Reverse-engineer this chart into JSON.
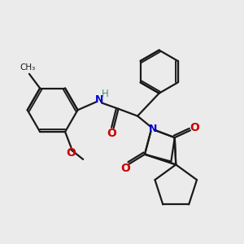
{
  "bg_color": "#ebebeb",
  "line_color": "#1a1a1a",
  "N_color": "#0000cc",
  "O_color": "#cc0000",
  "H_color": "#4a8a8a",
  "lw": 1.6,
  "figsize": [
    3.0,
    3.0
  ],
  "dpi": 100,
  "xlim": [
    0,
    10
  ],
  "ylim": [
    0,
    10
  ]
}
